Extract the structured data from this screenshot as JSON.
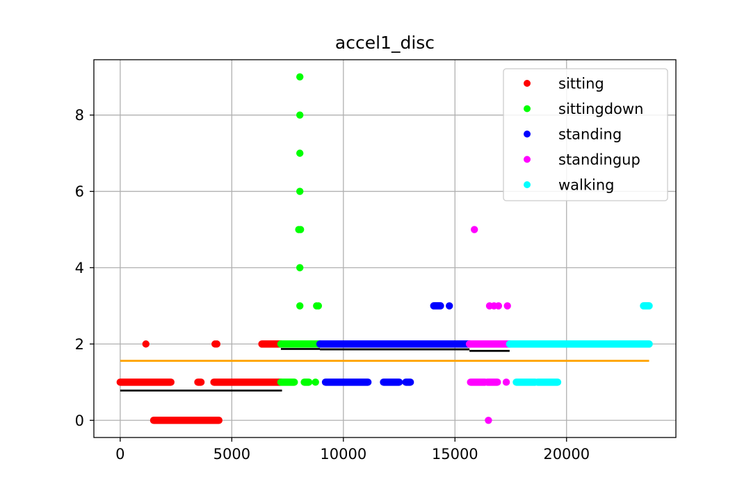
{
  "chart_data": {
    "type": "scatter",
    "title": "accel1_disc",
    "xlabel": "",
    "ylabel": "",
    "xlim": [
      -1180,
      24900
    ],
    "ylim": [
      -0.45,
      9.45
    ],
    "x_ticks": [
      0,
      5000,
      10000,
      15000,
      20000
    ],
    "x_tick_labels": [
      "0",
      "5000",
      "10000",
      "15000",
      "20000"
    ],
    "y_ticks": [
      0,
      2,
      4,
      6,
      8
    ],
    "y_tick_labels": [
      "0",
      "2",
      "4",
      "6",
      "8"
    ],
    "grid": true,
    "legend_position": "top-right",
    "series": [
      {
        "name": "sitting",
        "color": "#ff0000",
        "segments": [
          {
            "y": 1,
            "x0": 0,
            "x1": 2270
          },
          {
            "y": 1,
            "x0": 3480,
            "x1": 3620
          },
          {
            "y": 1,
            "x0": 4200,
            "x1": 7200
          },
          {
            "y": 0,
            "x0": 1500,
            "x1": 4420
          },
          {
            "y": 2,
            "x0": 6350,
            "x1": 7200
          }
        ],
        "points": [
          {
            "x": 1150,
            "y": 2
          },
          {
            "x": 4250,
            "y": 2
          },
          {
            "x": 4330,
            "y": 2
          }
        ]
      },
      {
        "name": "sittingdown",
        "color": "#00ff00",
        "segments": [
          {
            "y": 2,
            "x0": 7200,
            "x1": 8950
          },
          {
            "y": 1,
            "x0": 7200,
            "x1": 7800
          },
          {
            "y": 1,
            "x0": 8250,
            "x1": 8450
          }
        ],
        "points": [
          {
            "x": 8050,
            "y": 9
          },
          {
            "x": 8050,
            "y": 8
          },
          {
            "x": 8050,
            "y": 7
          },
          {
            "x": 8050,
            "y": 6
          },
          {
            "x": 8000,
            "y": 5
          },
          {
            "x": 8080,
            "y": 5
          },
          {
            "x": 8050,
            "y": 4
          },
          {
            "x": 8050,
            "y": 3
          },
          {
            "x": 8800,
            "y": 3
          },
          {
            "x": 8880,
            "y": 3
          },
          {
            "x": 8750,
            "y": 1
          }
        ]
      },
      {
        "name": "standing",
        "color": "#0000ff",
        "segments": [
          {
            "y": 2,
            "x0": 8950,
            "x1": 15650
          },
          {
            "y": 1,
            "x0": 9200,
            "x1": 11100
          },
          {
            "y": 1,
            "x0": 11800,
            "x1": 12500
          },
          {
            "y": 1,
            "x0": 12800,
            "x1": 13000
          },
          {
            "y": 3,
            "x0": 14050,
            "x1": 14350
          }
        ],
        "points": [
          {
            "x": 14750,
            "y": 3
          }
        ]
      },
      {
        "name": "standingup",
        "color": "#ff00ff",
        "segments": [
          {
            "y": 2,
            "x0": 15650,
            "x1": 17450
          },
          {
            "y": 1,
            "x0": 15700,
            "x1": 16350
          },
          {
            "y": 1,
            "x0": 16450,
            "x1": 16900
          }
        ],
        "points": [
          {
            "x": 15870,
            "y": 5
          },
          {
            "x": 16500,
            "y": 0
          },
          {
            "x": 16550,
            "y": 3
          },
          {
            "x": 16750,
            "y": 3
          },
          {
            "x": 16950,
            "y": 3
          },
          {
            "x": 17350,
            "y": 3
          },
          {
            "x": 17300,
            "y": 1
          }
        ]
      },
      {
        "name": "walking",
        "color": "#00ffff",
        "segments": [
          {
            "y": 2,
            "x0": 17450,
            "x1": 23700
          },
          {
            "y": 1,
            "x0": 17750,
            "x1": 18600
          },
          {
            "y": 1,
            "x0": 18700,
            "x1": 19600
          },
          {
            "y": 3,
            "x0": 23450,
            "x1": 23700
          }
        ],
        "points": []
      }
    ],
    "reference_lines": [
      {
        "color": "#ffa500",
        "y": 1.56,
        "x0": 0,
        "x1": 23700
      },
      {
        "color": "#000000",
        "y": 0.78,
        "x0": 0,
        "x1": 7250
      },
      {
        "color": "#000000",
        "y": 1.87,
        "x0": 7200,
        "x1": 8950
      },
      {
        "color": "#000000",
        "y": 1.86,
        "x0": 8950,
        "x1": 15650
      },
      {
        "color": "#000000",
        "y": 1.82,
        "x0": 15650,
        "x1": 17450
      },
      {
        "color": "#000000",
        "y": 1.98,
        "x0": 17450,
        "x1": 23700
      }
    ]
  }
}
